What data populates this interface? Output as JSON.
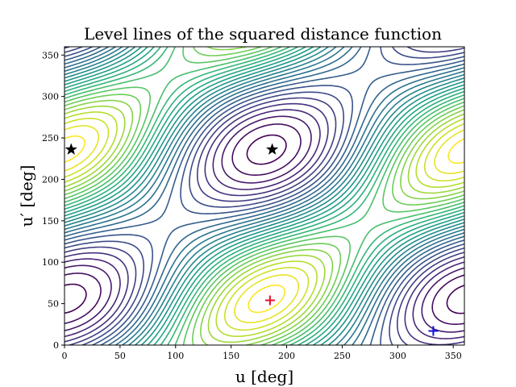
{
  "chart_data": {
    "type": "contour",
    "title": "Level lines of the squared distance function",
    "xlabel": "u [deg]",
    "ylabel": "u′ [deg]",
    "xlim": [
      0,
      360
    ],
    "ylim": [
      0,
      360
    ],
    "xticks": [
      "0",
      "50",
      "100",
      "150",
      "200",
      "250",
      "300",
      "350"
    ],
    "yticks": [
      "0",
      "50",
      "100",
      "150",
      "200",
      "250",
      "300",
      "350"
    ],
    "colormap": "viridis",
    "levels": 28,
    "grid": false,
    "markers": [
      {
        "kind": "star",
        "x": 6,
        "y": 236,
        "color": "#000000"
      },
      {
        "kind": "star",
        "x": 187,
        "y": 236,
        "color": "#000000"
      },
      {
        "kind": "plus",
        "x": 185,
        "y": 54,
        "color": "#e8112d"
      },
      {
        "kind": "plus",
        "x": 332,
        "y": 17,
        "color": "#1010e0"
      }
    ]
  }
}
